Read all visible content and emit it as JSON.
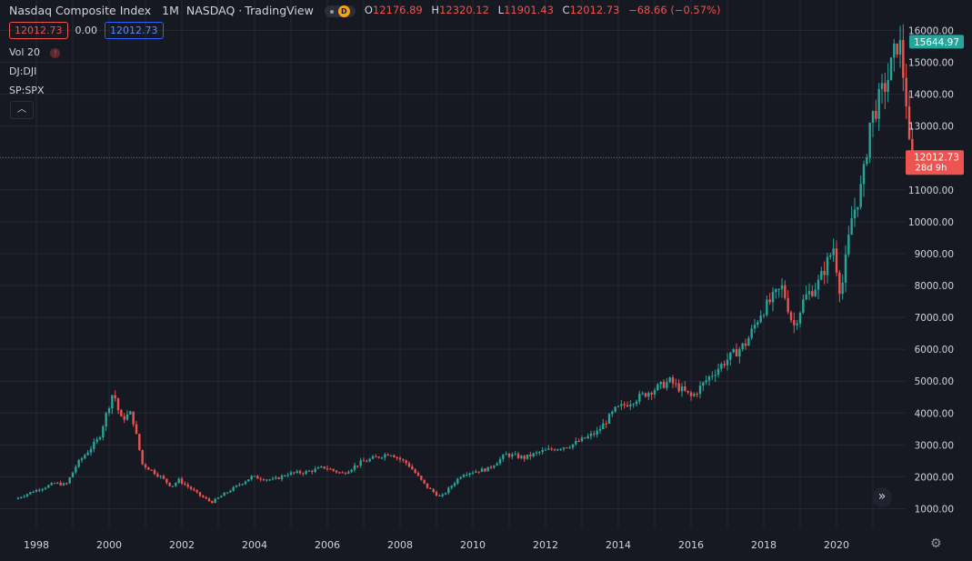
{
  "header": {
    "symbol_name": "Nasdaq Composite Index",
    "interval": "1M",
    "exchange": "NASDAQ",
    "source": "TradingView",
    "ohlc": {
      "o_label": "O",
      "o": "12176.89",
      "h_label": "H",
      "h": "12320.12",
      "l_label": "L",
      "l": "11901.43",
      "c_label": "C",
      "c": "12012.73",
      "change": "−68.66 (−0.57%)"
    },
    "badge_letter": "D"
  },
  "input_row": {
    "value1": "12012.73",
    "value2": "0.00",
    "value3": "12012.73"
  },
  "indicators": [
    {
      "label": "Vol 20"
    },
    {
      "label": "DJ:DJI"
    },
    {
      "label": "SP:SPX"
    }
  ],
  "price_scale": {
    "tick_labels": [
      "1000.00",
      "2000.00",
      "3000.00",
      "4000.00",
      "5000.00",
      "6000.00",
      "7000.00",
      "8000.00",
      "9000.00",
      "10000.00",
      "11000.00",
      "12000.00",
      "13000.00",
      "14000.00",
      "15000.00",
      "16000.00"
    ],
    "high_marker": "15644.97",
    "last_price_marker": "12012.73",
    "countdown": "28d 9h"
  },
  "time_scale": {
    "tick_labels": [
      "1998",
      "2000",
      "2002",
      "2004",
      "2006",
      "2008",
      "2010",
      "2012",
      "2014",
      "2016",
      "2018",
      "2020"
    ]
  },
  "colors": {
    "background": "#161922",
    "grid": "#252833",
    "up": "#26a69a",
    "down": "#ef5350",
    "text": "#d1d4dc",
    "accent_blue": "#2962ff"
  },
  "chart_data": {
    "type": "candlestick",
    "interval": "1M",
    "yaxis_ticks": [
      1000,
      2000,
      3000,
      4000,
      5000,
      6000,
      7000,
      8000,
      9000,
      10000,
      11000,
      12000,
      13000,
      14000,
      15000,
      16000
    ],
    "xaxis_ticks": [
      "1998",
      "2000",
      "2002",
      "2004",
      "2006",
      "2008",
      "2010",
      "2012",
      "2014",
      "2016",
      "2018",
      "2020"
    ],
    "ylim": [
      500,
      16500
    ],
    "price_path": [
      [
        1997.5,
        1300
      ],
      [
        1998.0,
        1550
      ],
      [
        1998.6,
        1800
      ],
      [
        1998.9,
        1750
      ],
      [
        1999.2,
        2400
      ],
      [
        1999.8,
        3200
      ],
      [
        2000.2,
        4700
      ],
      [
        2000.4,
        3800
      ],
      [
        2000.7,
        4000
      ],
      [
        2001.0,
        2400
      ],
      [
        2001.5,
        2000
      ],
      [
        2001.8,
        1700
      ],
      [
        2002.0,
        1900
      ],
      [
        2002.6,
        1400
      ],
      [
        2002.9,
        1200
      ],
      [
        2003.3,
        1500
      ],
      [
        2004.0,
        2000
      ],
      [
        2004.6,
        1900
      ],
      [
        2005.0,
        2100
      ],
      [
        2005.5,
        2150
      ],
      [
        2006.0,
        2300
      ],
      [
        2006.5,
        2100
      ],
      [
        2007.0,
        2450
      ],
      [
        2007.8,
        2750
      ],
      [
        2008.3,
        2400
      ],
      [
        2008.8,
        1700
      ],
      [
        2009.2,
        1350
      ],
      [
        2009.8,
        2100
      ],
      [
        2010.5,
        2250
      ],
      [
        2011.0,
        2700
      ],
      [
        2011.5,
        2600
      ],
      [
        2012.0,
        2800
      ],
      [
        2012.8,
        3000
      ],
      [
        2013.5,
        3400
      ],
      [
        2014.0,
        4100
      ],
      [
        2014.9,
        4650
      ],
      [
        2015.5,
        5000
      ],
      [
        2015.8,
        4750
      ],
      [
        2016.1,
        4500
      ],
      [
        2016.6,
        5150
      ],
      [
        2017.0,
        5600
      ],
      [
        2017.6,
        6200
      ],
      [
        2018.0,
        7150
      ],
      [
        2018.6,
        7950
      ],
      [
        2018.9,
        6700
      ],
      [
        2019.2,
        7600
      ],
      [
        2019.6,
        8100
      ],
      [
        2020.0,
        9200
      ],
      [
        2020.2,
        7700
      ],
      [
        2020.5,
        10100
      ],
      [
        2020.8,
        11200
      ],
      [
        2021.0,
        13100
      ],
      [
        2021.5,
        14500
      ],
      [
        2021.8,
        15800
      ],
      [
        2022.0,
        13800
      ],
      [
        2022.1,
        12012
      ]
    ],
    "last": {
      "open": 12176.89,
      "high": 12320.12,
      "low": 11901.43,
      "close": 12012.73
    }
  }
}
